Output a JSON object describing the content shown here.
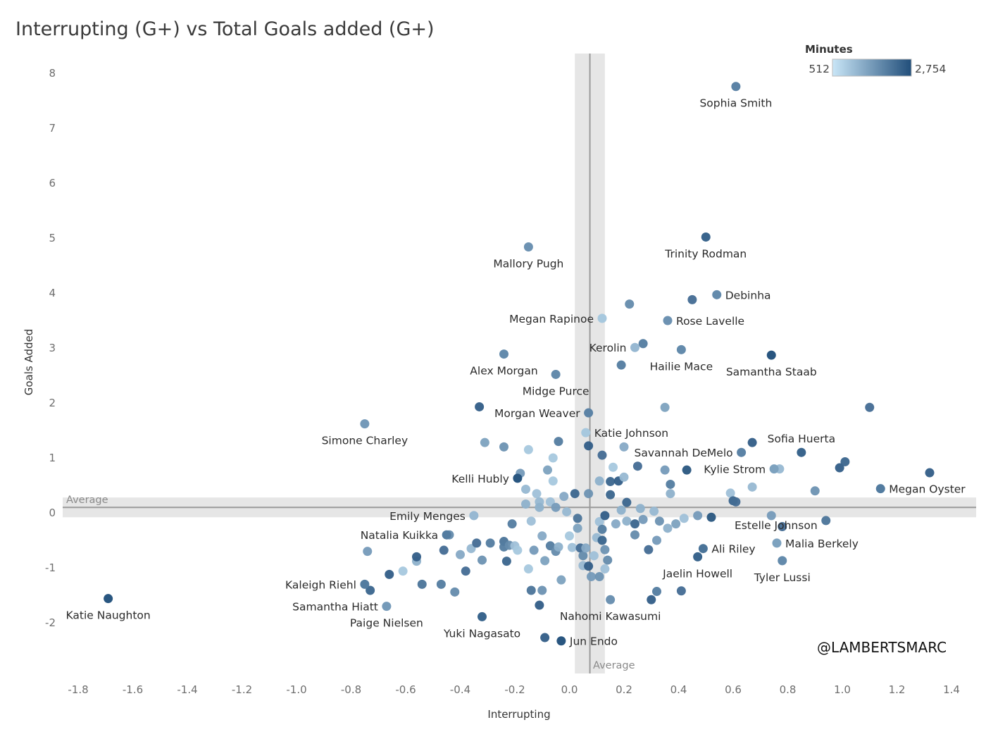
{
  "chart_data": {
    "type": "scatter",
    "title": "Interrupting (G+) vs Total Goals added (G+)",
    "xlabel": "Interrupting",
    "ylabel": "Goals Added",
    "xlim": [
      -1.85,
      1.45
    ],
    "ylim": [
      -2.9,
      8.35
    ],
    "x_ticks": [
      -1.8,
      -1.6,
      -1.4,
      -1.2,
      -1.0,
      -0.8,
      -0.6,
      -0.4,
      -0.2,
      0.0,
      0.2,
      0.4,
      0.6,
      0.8,
      1.0,
      1.2,
      1.4
    ],
    "x_tick_labels": [
      "-1.8",
      "-1.6",
      "-1.4",
      "-1.2",
      "-1.0",
      "-0.8",
      "-0.6",
      "-0.4",
      "-0.2",
      "0.0",
      "0.2",
      "0.4",
      "0.6",
      "0.8",
      "1.0",
      "1.2",
      "1.4"
    ],
    "y_ticks": [
      -2,
      -1,
      0,
      1,
      2,
      3,
      4,
      5,
      6,
      7,
      8
    ],
    "y_tick_labels": [
      "-2",
      "-1",
      "0",
      "1",
      "2",
      "3",
      "4",
      "5",
      "6",
      "7",
      "8"
    ],
    "average_x": 0.075,
    "average_x_band": [
      0.02,
      0.13
    ],
    "average_y": 0.1,
    "average_y_band": [
      -0.08,
      0.28
    ],
    "average_label": "Average",
    "color_legend": {
      "title": "Minutes",
      "min_label": "512",
      "max_label": "2,754",
      "min": 512,
      "max": 2754,
      "color_low": "#c9e6f7",
      "color_high": "#214e7a"
    },
    "handle": "@LAMBERTSMARC",
    "labeled_points": [
      {
        "name": "Sophia Smith",
        "x": 0.61,
        "y": 7.76,
        "c": 0.65,
        "pos": "below"
      },
      {
        "name": "Trinity Rodman",
        "x": 0.5,
        "y": 5.02,
        "c": 0.85,
        "pos": "below"
      },
      {
        "name": "Mallory Pugh",
        "x": -0.15,
        "y": 4.84,
        "c": 0.55,
        "pos": "below"
      },
      {
        "name": "Debinha",
        "x": 0.54,
        "y": 3.97,
        "c": 0.6,
        "pos": "right"
      },
      {
        "name": "Megan Rapinoe",
        "x": 0.12,
        "y": 3.54,
        "c": 0.2,
        "pos": "left"
      },
      {
        "name": "Rose Lavelle",
        "x": 0.36,
        "y": 3.5,
        "c": 0.55,
        "pos": "right"
      },
      {
        "name": "Kerolin",
        "x": 0.24,
        "y": 3.01,
        "c": 0.3,
        "pos": "left"
      },
      {
        "name": "Hailie Mace",
        "x": 0.41,
        "y": 2.97,
        "c": 0.6,
        "pos": "below"
      },
      {
        "name": "Samantha Staab",
        "x": 0.74,
        "y": 2.87,
        "c": 0.95,
        "pos": "below"
      },
      {
        "name": "Alex Morgan",
        "x": -0.24,
        "y": 2.89,
        "c": 0.6,
        "pos": "below"
      },
      {
        "name": "Midge Purce",
        "x": -0.05,
        "y": 2.52,
        "c": 0.6,
        "pos": "below"
      },
      {
        "name": "Morgan Weaver",
        "x": 0.07,
        "y": 1.82,
        "c": 0.65,
        "pos": "left"
      },
      {
        "name": "Simone Charley",
        "x": -0.75,
        "y": 1.62,
        "c": 0.5,
        "pos": "below"
      },
      {
        "name": "Katie Johnson",
        "x": 0.06,
        "y": 1.46,
        "c": 0.2,
        "pos": "right"
      },
      {
        "name": "Sofia Huerta",
        "x": 0.85,
        "y": 1.1,
        "c": 0.85,
        "pos": "above"
      },
      {
        "name": "Savannah DeMelo",
        "x": 0.63,
        "y": 1.1,
        "c": 0.65,
        "pos": "left"
      },
      {
        "name": "Kylie Strom",
        "x": 0.75,
        "y": 0.8,
        "c": 0.45,
        "pos": "left"
      },
      {
        "name": "Megan Oyster",
        "x": 1.14,
        "y": 0.44,
        "c": 0.7,
        "pos": "right"
      },
      {
        "name": "Kelli Hubly",
        "x": -0.19,
        "y": 0.63,
        "c": 0.95,
        "pos": "left"
      },
      {
        "name": "Estelle Johnson",
        "x": 0.6,
        "y": 0.22,
        "c": 0.8,
        "pos": "right-low"
      },
      {
        "name": "Emily Menges",
        "x": -0.35,
        "y": -0.05,
        "c": 0.3,
        "pos": "left"
      },
      {
        "name": "Natalia Kuikka",
        "x": -0.45,
        "y": -0.4,
        "c": 0.7,
        "pos": "left"
      },
      {
        "name": "Malia Berkely",
        "x": 0.76,
        "y": -0.55,
        "c": 0.45,
        "pos": "right"
      },
      {
        "name": "Ali Riley",
        "x": 0.49,
        "y": -0.65,
        "c": 0.75,
        "pos": "right"
      },
      {
        "name": "Jaelin Howell",
        "x": 0.47,
        "y": -0.8,
        "c": 0.85,
        "pos": "below"
      },
      {
        "name": "Tyler Lussi",
        "x": 0.78,
        "y": -0.87,
        "c": 0.6,
        "pos": "below"
      },
      {
        "name": "Kaleigh Riehl",
        "x": -0.75,
        "y": -1.3,
        "c": 0.7,
        "pos": "left"
      },
      {
        "name": "Samantha Hiatt",
        "x": -0.67,
        "y": -1.7,
        "c": 0.5,
        "pos": "left"
      },
      {
        "name": "Paige Nielsen",
        "x": -0.67,
        "y": -1.7,
        "c": 0.5,
        "pos": "below"
      },
      {
        "name": "Katie Naughton",
        "x": -1.69,
        "y": -1.56,
        "c": 0.95,
        "pos": "below"
      },
      {
        "name": "Yuki Nagasato",
        "x": -0.32,
        "y": -1.89,
        "c": 0.85,
        "pos": "below"
      },
      {
        "name": "Nahomi Kawasumi",
        "x": 0.15,
        "y": -1.58,
        "c": 0.55,
        "pos": "below"
      },
      {
        "name": "Jun Endo",
        "x": -0.03,
        "y": -2.33,
        "c": 0.95,
        "pos": "right"
      }
    ],
    "points": [
      [
        -0.74,
        -0.7,
        0.5
      ],
      [
        -0.73,
        -1.41,
        0.85
      ],
      [
        -0.66,
        -1.12,
        0.9
      ],
      [
        -0.61,
        -1.06,
        0.2
      ],
      [
        -0.56,
        -0.88,
        0.35
      ],
      [
        -0.56,
        -0.8,
        0.9
      ],
      [
        -0.54,
        -1.3,
        0.75
      ],
      [
        -0.47,
        -1.3,
        0.7
      ],
      [
        -0.46,
        -0.68,
        0.8
      ],
      [
        -0.44,
        -0.4,
        0.6
      ],
      [
        -0.42,
        -1.44,
        0.6
      ],
      [
        -0.4,
        -0.76,
        0.4
      ],
      [
        -0.38,
        -1.06,
        0.8
      ],
      [
        -0.36,
        -0.65,
        0.3
      ],
      [
        -0.34,
        -0.55,
        0.8
      ],
      [
        -0.32,
        -0.86,
        0.55
      ],
      [
        -0.31,
        1.28,
        0.45
      ],
      [
        -0.29,
        -0.55,
        0.7
      ],
      [
        -0.24,
        1.2,
        0.55
      ],
      [
        -0.24,
        -0.52,
        0.75
      ],
      [
        -0.24,
        -0.62,
        0.7
      ],
      [
        -0.23,
        -0.88,
        0.85
      ],
      [
        -0.22,
        -0.59,
        0.6
      ],
      [
        -0.21,
        -0.2,
        0.7
      ],
      [
        -0.2,
        -0.6,
        0.25
      ],
      [
        -0.19,
        -0.68,
        0.2
      ],
      [
        -0.18,
        0.72,
        0.5
      ],
      [
        -0.16,
        0.43,
        0.3
      ],
      [
        -0.16,
        0.16,
        0.35
      ],
      [
        -0.15,
        -1.02,
        0.2
      ],
      [
        -0.15,
        1.15,
        0.2
      ],
      [
        -0.14,
        -0.15,
        0.25
      ],
      [
        -0.14,
        -1.41,
        0.75
      ],
      [
        -0.13,
        -0.68,
        0.5
      ],
      [
        -0.12,
        0.35,
        0.25
      ],
      [
        -0.11,
        0.2,
        0.3
      ],
      [
        -0.11,
        0.1,
        0.35
      ],
      [
        -0.1,
        -1.41,
        0.55
      ],
      [
        -0.1,
        -0.42,
        0.4
      ],
      [
        -0.09,
        -0.87,
        0.45
      ],
      [
        -0.08,
        0.78,
        0.45
      ],
      [
        -0.07,
        0.2,
        0.25
      ],
      [
        -0.07,
        -0.6,
        0.7
      ],
      [
        -0.06,
        1.0,
        0.2
      ],
      [
        -0.06,
        0.58,
        0.2
      ],
      [
        -0.05,
        0.1,
        0.5
      ],
      [
        -0.05,
        -0.7,
        0.6
      ],
      [
        -0.04,
        -0.62,
        0.35
      ],
      [
        -0.04,
        1.3,
        0.7
      ],
      [
        -0.03,
        -1.22,
        0.45
      ],
      [
        -0.02,
        0.3,
        0.4
      ],
      [
        -0.01,
        0.02,
        0.3
      ],
      [
        0.0,
        -0.42,
        0.2
      ],
      [
        0.01,
        -0.63,
        0.25
      ],
      [
        0.02,
        0.35,
        0.85
      ],
      [
        0.03,
        -0.28,
        0.45
      ],
      [
        0.03,
        -0.1,
        0.75
      ],
      [
        0.04,
        -0.64,
        0.8
      ],
      [
        0.05,
        -0.78,
        0.6
      ],
      [
        0.05,
        -0.96,
        0.3
      ],
      [
        0.06,
        -0.64,
        0.4
      ],
      [
        0.07,
        0.35,
        0.55
      ],
      [
        0.07,
        -0.97,
        0.9
      ],
      [
        0.07,
        1.22,
        0.9
      ],
      [
        0.08,
        -1.16,
        0.5
      ],
      [
        0.09,
        -0.78,
        0.25
      ],
      [
        0.1,
        -0.45,
        0.3
      ],
      [
        0.11,
        0.58,
        0.35
      ],
      [
        0.11,
        -0.16,
        0.25
      ],
      [
        0.11,
        -1.16,
        0.55
      ],
      [
        0.12,
        1.05,
        0.8
      ],
      [
        0.12,
        -0.3,
        0.7
      ],
      [
        0.12,
        -0.5,
        0.85
      ],
      [
        0.13,
        -0.05,
        0.9
      ],
      [
        0.13,
        -0.67,
        0.55
      ],
      [
        0.13,
        -1.02,
        0.25
      ],
      [
        0.14,
        -0.86,
        0.6
      ],
      [
        0.15,
        0.33,
        0.85
      ],
      [
        0.15,
        0.57,
        0.85
      ],
      [
        0.16,
        0.83,
        0.2
      ],
      [
        0.17,
        -0.2,
        0.4
      ],
      [
        0.18,
        0.58,
        0.9
      ],
      [
        0.19,
        0.05,
        0.35
      ],
      [
        0.2,
        1.2,
        0.4
      ],
      [
        0.2,
        0.65,
        0.3
      ],
      [
        0.21,
        0.19,
        0.85
      ],
      [
        0.21,
        -0.15,
        0.35
      ],
      [
        0.22,
        3.8,
        0.6
      ],
      [
        0.24,
        -0.2,
        0.85
      ],
      [
        0.24,
        -0.4,
        0.6
      ],
      [
        0.25,
        0.85,
        0.8
      ],
      [
        0.26,
        0.08,
        0.35
      ],
      [
        0.27,
        -0.12,
        0.5
      ],
      [
        0.29,
        -0.67,
        0.8
      ],
      [
        0.31,
        0.03,
        0.3
      ],
      [
        0.32,
        -0.5,
        0.5
      ],
      [
        0.33,
        -0.15,
        0.55
      ],
      [
        0.35,
        0.78,
        0.5
      ],
      [
        0.35,
        1.92,
        0.45
      ],
      [
        0.36,
        -0.28,
        0.35
      ],
      [
        0.37,
        0.52,
        0.7
      ],
      [
        0.37,
        0.35,
        0.35
      ],
      [
        0.39,
        -0.2,
        0.45
      ],
      [
        0.42,
        -0.1,
        0.25
      ],
      [
        0.43,
        0.78,
        0.95
      ],
      [
        0.45,
        3.88,
        0.8
      ],
      [
        0.47,
        -0.05,
        0.5
      ],
      [
        0.52,
        -0.08,
        0.95
      ],
      [
        0.59,
        0.36,
        0.25
      ],
      [
        0.61,
        0.2,
        0.8
      ],
      [
        0.67,
        0.47,
        0.3
      ],
      [
        0.67,
        1.28,
        0.9
      ],
      [
        0.74,
        -0.05,
        0.5
      ],
      [
        0.77,
        0.8,
        0.3
      ],
      [
        0.78,
        -0.25,
        0.8
      ],
      [
        0.9,
        0.4,
        0.55
      ],
      [
        0.94,
        -0.14,
        0.75
      ],
      [
        0.99,
        0.82,
        0.9
      ],
      [
        1.01,
        0.93,
        0.85
      ],
      [
        1.1,
        1.92,
        0.8
      ],
      [
        1.32,
        0.73,
        0.9
      ],
      [
        0.19,
        2.69,
        0.7
      ],
      [
        0.27,
        3.08,
        0.7
      ],
      [
        0.3,
        -1.58,
        0.9
      ],
      [
        0.32,
        -1.43,
        0.7
      ],
      [
        0.41,
        -1.42,
        0.8
      ],
      [
        -0.09,
        -2.27,
        0.9
      ],
      [
        -0.11,
        -1.68,
        0.9
      ],
      [
        -0.33,
        1.93,
        0.9
      ]
    ]
  }
}
